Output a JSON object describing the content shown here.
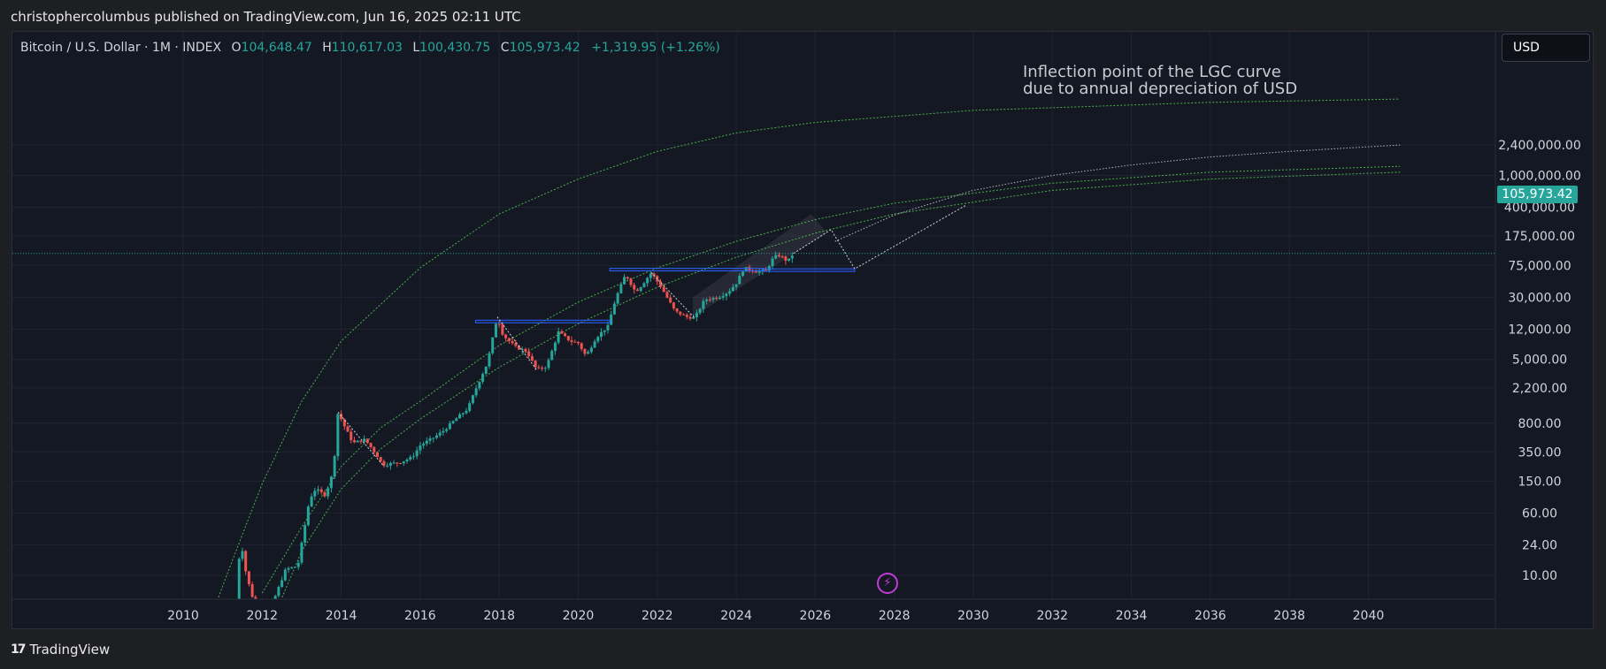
{
  "header": {
    "published_line": "christophercolumbus published on TradingView.com, Jun 16, 2025 02:11 UTC"
  },
  "legend": {
    "symbol": "Bitcoin / U.S. Dollar · 1M · INDEX",
    "open_label": "O",
    "open": "104,648.47",
    "high_label": "H",
    "high": "110,617.03",
    "low_label": "L",
    "low": "100,430.75",
    "close_label": "C",
    "close": "105,973.42",
    "change": "+1,319.95 (+1.26%)"
  },
  "currency": "USD",
  "annotation": {
    "line1": "Inflection point of the LGC curve",
    "line2": "due to annual depreciation of USD"
  },
  "last_price": "105,973.42",
  "footer": {
    "brand": "TradingView",
    "brand_icon": "tradingview-logo-icon"
  },
  "colors": {
    "up": "#26a69a",
    "down": "#ef5350",
    "curve": "#4caf50",
    "box": "#2962ff",
    "background": "#141823",
    "grid": "#1f2433"
  },
  "chart_data": {
    "type": "candlestick",
    "scale": "log",
    "x_axis": {
      "range": [
        2008.5,
        2041.0
      ],
      "ticks": [
        2010,
        2012,
        2014,
        2016,
        2018,
        2020,
        2022,
        2024,
        2026,
        2028,
        2030,
        2032,
        2034,
        2036,
        2038,
        2040
      ]
    },
    "y_axis": {
      "range": [
        5,
        3000000
      ],
      "ticks": [
        {
          "value": 2400000,
          "label": "2,400,000.00"
        },
        {
          "value": 1000000,
          "label": "1,000,000.00"
        },
        {
          "value": 400000,
          "label": "400,000.00"
        },
        {
          "value": 175000,
          "label": "175,000.00"
        },
        {
          "value": 75000,
          "label": "75,000.00"
        },
        {
          "value": 30000,
          "label": "30,000.00"
        },
        {
          "value": 12000,
          "label": "12,000.00"
        },
        {
          "value": 5000,
          "label": "5,000.00"
        },
        {
          "value": 2200,
          "label": "2,200.00"
        },
        {
          "value": 800,
          "label": "800.00"
        },
        {
          "value": 350,
          "label": "350.00"
        },
        {
          "value": 150,
          "label": "150.00"
        },
        {
          "value": 60,
          "label": "60.00"
        },
        {
          "value": 24,
          "label": "24.00"
        },
        {
          "value": 10,
          "label": "10.00"
        }
      ]
    },
    "price_path": [
      [
        2011.25,
        0.8
      ],
      [
        2011.45,
        30
      ],
      [
        2011.6,
        10
      ],
      [
        2011.9,
        3
      ],
      [
        2012.3,
        5
      ],
      [
        2012.6,
        12
      ],
      [
        2012.9,
        13
      ],
      [
        2013.2,
        90
      ],
      [
        2013.35,
        120
      ],
      [
        2013.6,
        100
      ],
      [
        2013.8,
        200
      ],
      [
        2013.92,
        1100
      ],
      [
        2014.1,
        700
      ],
      [
        2014.3,
        450
      ],
      [
        2014.6,
        500
      ],
      [
        2014.9,
        320
      ],
      [
        2015.05,
        240
      ],
      [
        2015.5,
        260
      ],
      [
        2015.8,
        300
      ],
      [
        2016.0,
        420
      ],
      [
        2016.4,
        550
      ],
      [
        2016.6,
        650
      ],
      [
        2016.9,
        900
      ],
      [
        2017.2,
        1200
      ],
      [
        2017.45,
        2400
      ],
      [
        2017.7,
        4500
      ],
      [
        2017.95,
        17000
      ],
      [
        2018.1,
        10000
      ],
      [
        2018.4,
        7200
      ],
      [
        2018.7,
        6300
      ],
      [
        2018.95,
        3700
      ],
      [
        2019.2,
        4100
      ],
      [
        2019.5,
        11000
      ],
      [
        2019.8,
        8500
      ],
      [
        2020.0,
        8000
      ],
      [
        2020.2,
        5500
      ],
      [
        2020.45,
        9400
      ],
      [
        2020.75,
        13000
      ],
      [
        2020.95,
        29000
      ],
      [
        2021.2,
        58000
      ],
      [
        2021.45,
        35000
      ],
      [
        2021.6,
        42000
      ],
      [
        2021.85,
        61000
      ],
      [
        2022.1,
        40000
      ],
      [
        2022.45,
        20000
      ],
      [
        2022.75,
        17000
      ],
      [
        2022.95,
        16500
      ],
      [
        2023.2,
        28000
      ],
      [
        2023.55,
        30000
      ],
      [
        2023.8,
        35000
      ],
      [
        2024.0,
        45000
      ],
      [
        2024.2,
        70000
      ],
      [
        2024.5,
        63000
      ],
      [
        2024.75,
        64000
      ],
      [
        2024.95,
        96000
      ],
      [
        2025.1,
        100000
      ],
      [
        2025.3,
        84000
      ],
      [
        2025.45,
        105973
      ]
    ],
    "lgc_curves": {
      "upper": [
        [
          2010.8,
          4
        ],
        [
          2011.3,
          18
        ],
        [
          2012.0,
          140
        ],
        [
          2013.0,
          1500
        ],
        [
          2014.0,
          8500
        ],
        [
          2016.0,
          70000
        ],
        [
          2018.0,
          330000
        ],
        [
          2020.0,
          900000
        ],
        [
          2022.0,
          2000000
        ],
        [
          2024.0,
          3400000
        ],
        [
          2026.0,
          4600000
        ],
        [
          2030.0,
          6500000
        ],
        [
          2036.0,
          8200000
        ],
        [
          2040.8,
          9000000
        ]
      ],
      "middle": [
        [
          2012.0,
          6
        ],
        [
          2013.0,
          40
        ],
        [
          2014.0,
          230
        ],
        [
          2015.0,
          700
        ],
        [
          2016.0,
          1500
        ],
        [
          2018.0,
          7500
        ],
        [
          2020.0,
          26000
        ],
        [
          2022.0,
          70000
        ],
        [
          2024.0,
          150000
        ],
        [
          2026.0,
          280000
        ],
        [
          2028.0,
          450000
        ],
        [
          2032.0,
          800000
        ],
        [
          2036.0,
          1100000
        ],
        [
          2040.8,
          1300000
        ]
      ],
      "lower": [
        [
          2012.4,
          4
        ],
        [
          2013.0,
          20
        ],
        [
          2014.0,
          120
        ],
        [
          2015.0,
          380
        ],
        [
          2016.0,
          900
        ],
        [
          2018.0,
          4000
        ],
        [
          2020.0,
          14000
        ],
        [
          2022.0,
          40000
        ],
        [
          2024.0,
          95000
        ],
        [
          2026.0,
          190000
        ],
        [
          2028.0,
          330000
        ],
        [
          2032.0,
          650000
        ],
        [
          2036.0,
          900000
        ],
        [
          2040.8,
          1100000
        ]
      ],
      "depreciation_dotted": [
        [
          2026.5,
          150000
        ],
        [
          2028.0,
          320000
        ],
        [
          2030.0,
          650000
        ],
        [
          2032.0,
          1000000
        ],
        [
          2034.0,
          1350000
        ],
        [
          2036.0,
          1700000
        ],
        [
          2038.0,
          2000000
        ],
        [
          2040.8,
          2400000
        ]
      ]
    },
    "annotations": {
      "box_2018": {
        "x": [
          2017.4,
          2020.8
        ],
        "y": [
          14500,
          15500
        ]
      },
      "box_2022": {
        "x": [
          2020.8,
          2024.7
        ],
        "y": [
          64000,
          69000
        ]
      },
      "box_2025": {
        "x": [
          2024.7,
          2027.0
        ],
        "y": [
          63000,
          68000
        ]
      },
      "dotted_swings": [
        [
          [
            2013.92,
            1100
          ],
          [
            2015.05,
            240
          ]
        ],
        [
          [
            2017.95,
            17000
          ],
          [
            2018.95,
            3700
          ]
        ],
        [
          [
            2021.85,
            61000
          ],
          [
            2022.95,
            16500
          ]
        ],
        [
          [
            2025.45,
            105973
          ],
          [
            2026.4,
            210000
          ],
          [
            2027.0,
            68000
          ],
          [
            2029.8,
            420000
          ]
        ]
      ]
    },
    "last_price": 105973.42
  }
}
